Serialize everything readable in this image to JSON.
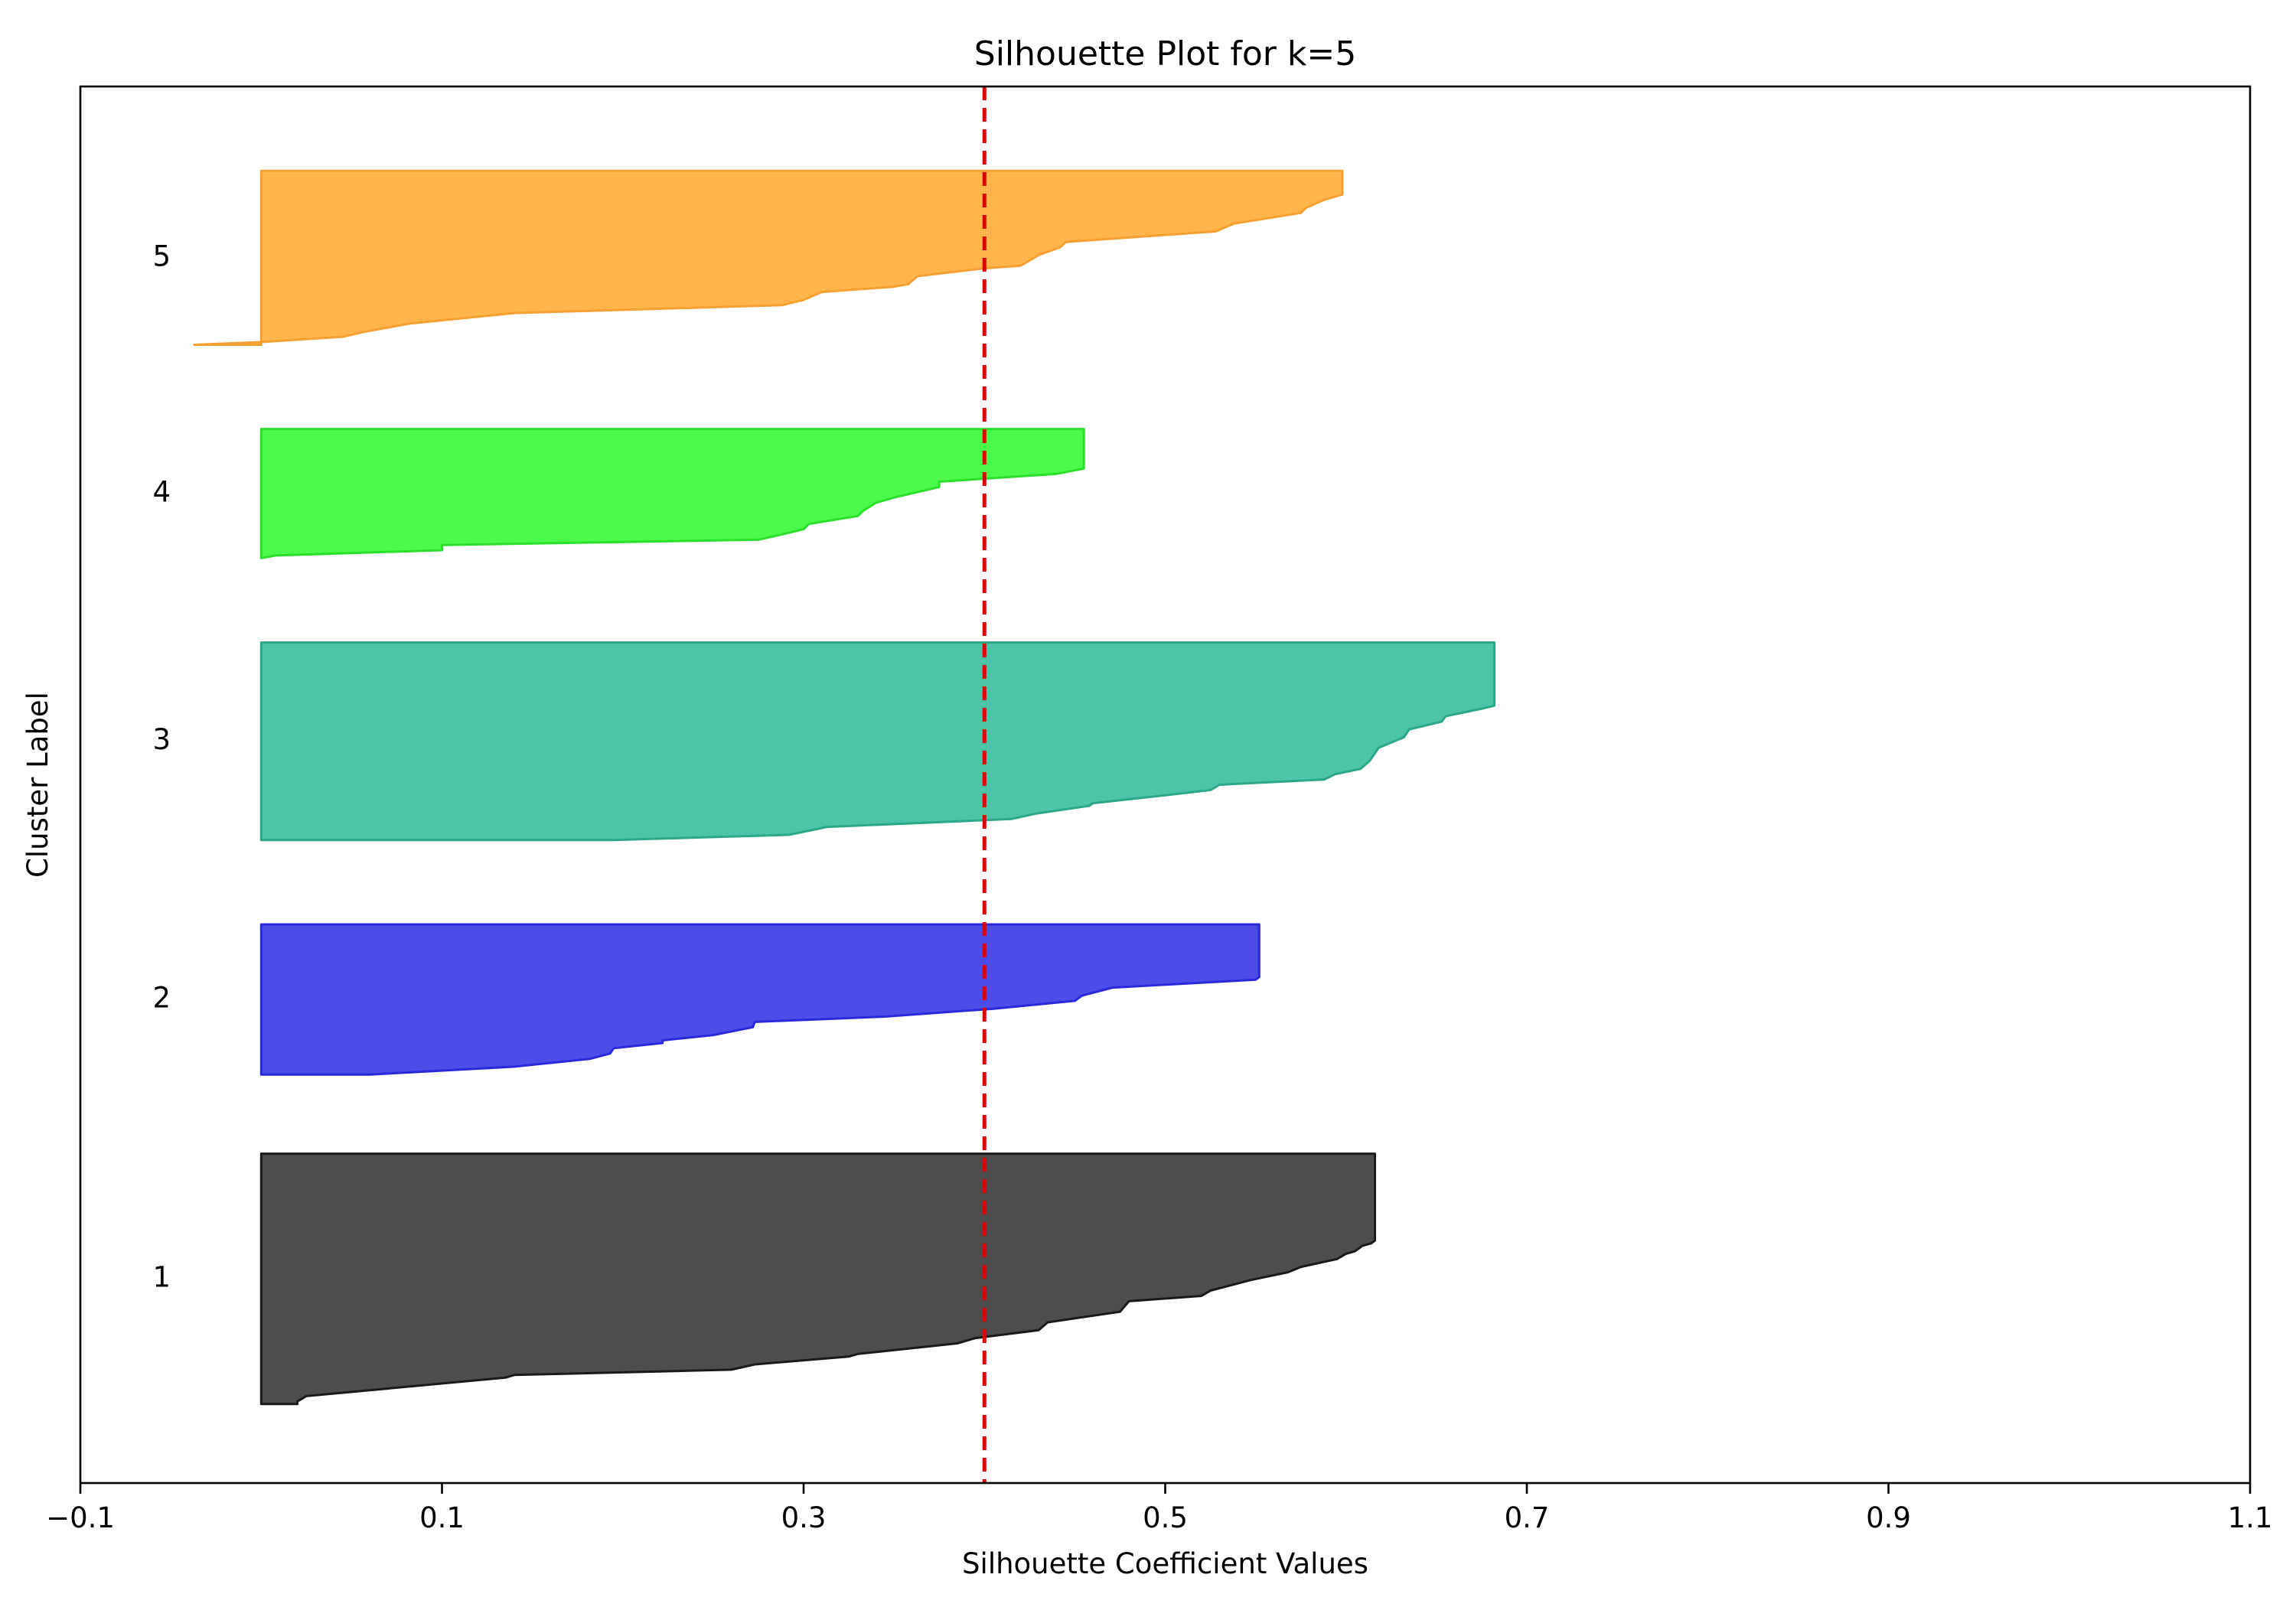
{
  "chart_data": {
    "type": "area",
    "title": "Silhouette Plot for k=5",
    "xlabel": "Silhouette Coefficient Values",
    "ylabel": "Cluster Label",
    "xlim": [
      -0.1,
      1.1
    ],
    "ylim": [
      0,
      530
    ],
    "x_ticks": [
      -0.1,
      0.1,
      0.3,
      0.5,
      0.7,
      0.9,
      1.1
    ],
    "x_tick_labels": [
      "−0.1",
      "0.1",
      "0.3",
      "0.5",
      "0.7",
      "0.9",
      "1.1"
    ],
    "grid": false,
    "average_silhouette": 0.4,
    "average_line_color": "#e00000",
    "clusters": [
      {
        "label": "1",
        "color": "#4d4d4d",
        "edge": "#1a1a1a",
        "y_lower": 30,
        "y_upper": 125,
        "profile": [
          [
            0,
            0.02
          ],
          [
            1,
            0.02
          ],
          [
            3,
            0.025
          ],
          [
            10,
            0.135
          ],
          [
            11,
            0.14
          ],
          [
            13,
            0.26
          ],
          [
            15,
            0.273
          ],
          [
            18,
            0.325
          ],
          [
            19,
            0.33
          ],
          [
            23,
            0.385
          ],
          [
            25,
            0.395
          ],
          [
            28,
            0.43
          ],
          [
            31,
            0.435
          ],
          [
            35,
            0.475
          ],
          [
            39,
            0.48
          ],
          [
            41,
            0.52
          ],
          [
            43,
            0.525
          ],
          [
            47,
            0.547
          ],
          [
            50,
            0.568
          ],
          [
            52,
            0.575
          ],
          [
            55,
            0.595
          ],
          [
            57,
            0.6
          ],
          [
            58,
            0.605
          ],
          [
            60,
            0.609
          ],
          [
            61,
            0.614
          ],
          [
            62,
            0.616
          ]
        ]
      },
      {
        "label": "2",
        "color": "#4c4ce8",
        "edge": "#2a2adc",
        "y_lower": 155,
        "y_upper": 212,
        "profile": [
          [
            0,
            0.06
          ],
          [
            3,
            0.14
          ],
          [
            6,
            0.182
          ],
          [
            8,
            0.193
          ],
          [
            10,
            0.195
          ],
          [
            12,
            0.222
          ],
          [
            13,
            0.222
          ],
          [
            15,
            0.25
          ],
          [
            18,
            0.272
          ],
          [
            20,
            0.273
          ],
          [
            22,
            0.345
          ],
          [
            25,
            0.405
          ],
          [
            28,
            0.45
          ],
          [
            30,
            0.454
          ],
          [
            33,
            0.471
          ],
          [
            36,
            0.55
          ],
          [
            37,
            0.552
          ]
        ]
      },
      {
        "label": "3",
        "color": "#4cc4a8",
        "edge": "#2aa888",
        "y_lower": 244,
        "y_upper": 319,
        "profile": [
          [
            0,
            0.195
          ],
          [
            2,
            0.292
          ],
          [
            5,
            0.313
          ],
          [
            8,
            0.415
          ],
          [
            10,
            0.428
          ],
          [
            13,
            0.458
          ],
          [
            14,
            0.46
          ],
          [
            17,
            0.5
          ],
          [
            19,
            0.525
          ],
          [
            21,
            0.53
          ],
          [
            23,
            0.588
          ],
          [
            25,
            0.594
          ],
          [
            27,
            0.608
          ],
          [
            30,
            0.613
          ],
          [
            35,
            0.618
          ],
          [
            39,
            0.632
          ],
          [
            42,
            0.635
          ],
          [
            45,
            0.653
          ],
          [
            47,
            0.655
          ],
          [
            50,
            0.676
          ],
          [
            51,
            0.682
          ]
        ]
      },
      {
        "label": "4",
        "color": "#4cfa4c",
        "edge": "#2ae02a",
        "y_lower": 351,
        "y_upper": 400,
        "profile": [
          [
            0,
            0.0
          ],
          [
            1,
            0.008
          ],
          [
            3,
            0.1
          ],
          [
            5,
            0.1
          ],
          [
            7,
            0.275
          ],
          [
            9,
            0.288
          ],
          [
            11,
            0.3
          ],
          [
            13,
            0.303
          ],
          [
            16,
            0.33
          ],
          [
            18,
            0.333
          ],
          [
            21,
            0.34
          ],
          [
            23,
            0.35
          ],
          [
            27,
            0.375
          ],
          [
            29,
            0.375
          ],
          [
            32,
            0.44
          ],
          [
            34,
            0.455
          ]
        ]
      },
      {
        "label": "5",
        "color": "#ffb44c",
        "edge": "#f5a030",
        "y_lower": 432,
        "y_upper": 498,
        "profile": [
          [
            0,
            -0.037
          ],
          [
            1,
            0.0
          ],
          [
            3,
            0.045
          ],
          [
            5,
            0.058
          ],
          [
            8,
            0.082
          ],
          [
            12,
            0.14
          ],
          [
            15,
            0.288
          ],
          [
            17,
            0.3
          ],
          [
            20,
            0.31
          ],
          [
            22,
            0.35
          ],
          [
            23,
            0.358
          ],
          [
            26,
            0.363
          ],
          [
            29,
            0.4
          ],
          [
            30,
            0.42
          ],
          [
            34,
            0.43
          ],
          [
            37,
            0.442
          ],
          [
            39,
            0.445
          ],
          [
            43,
            0.528
          ],
          [
            46,
            0.538
          ],
          [
            50,
            0.575
          ],
          [
            52,
            0.578
          ],
          [
            55,
            0.588
          ],
          [
            57,
            0.598
          ]
        ]
      }
    ]
  }
}
